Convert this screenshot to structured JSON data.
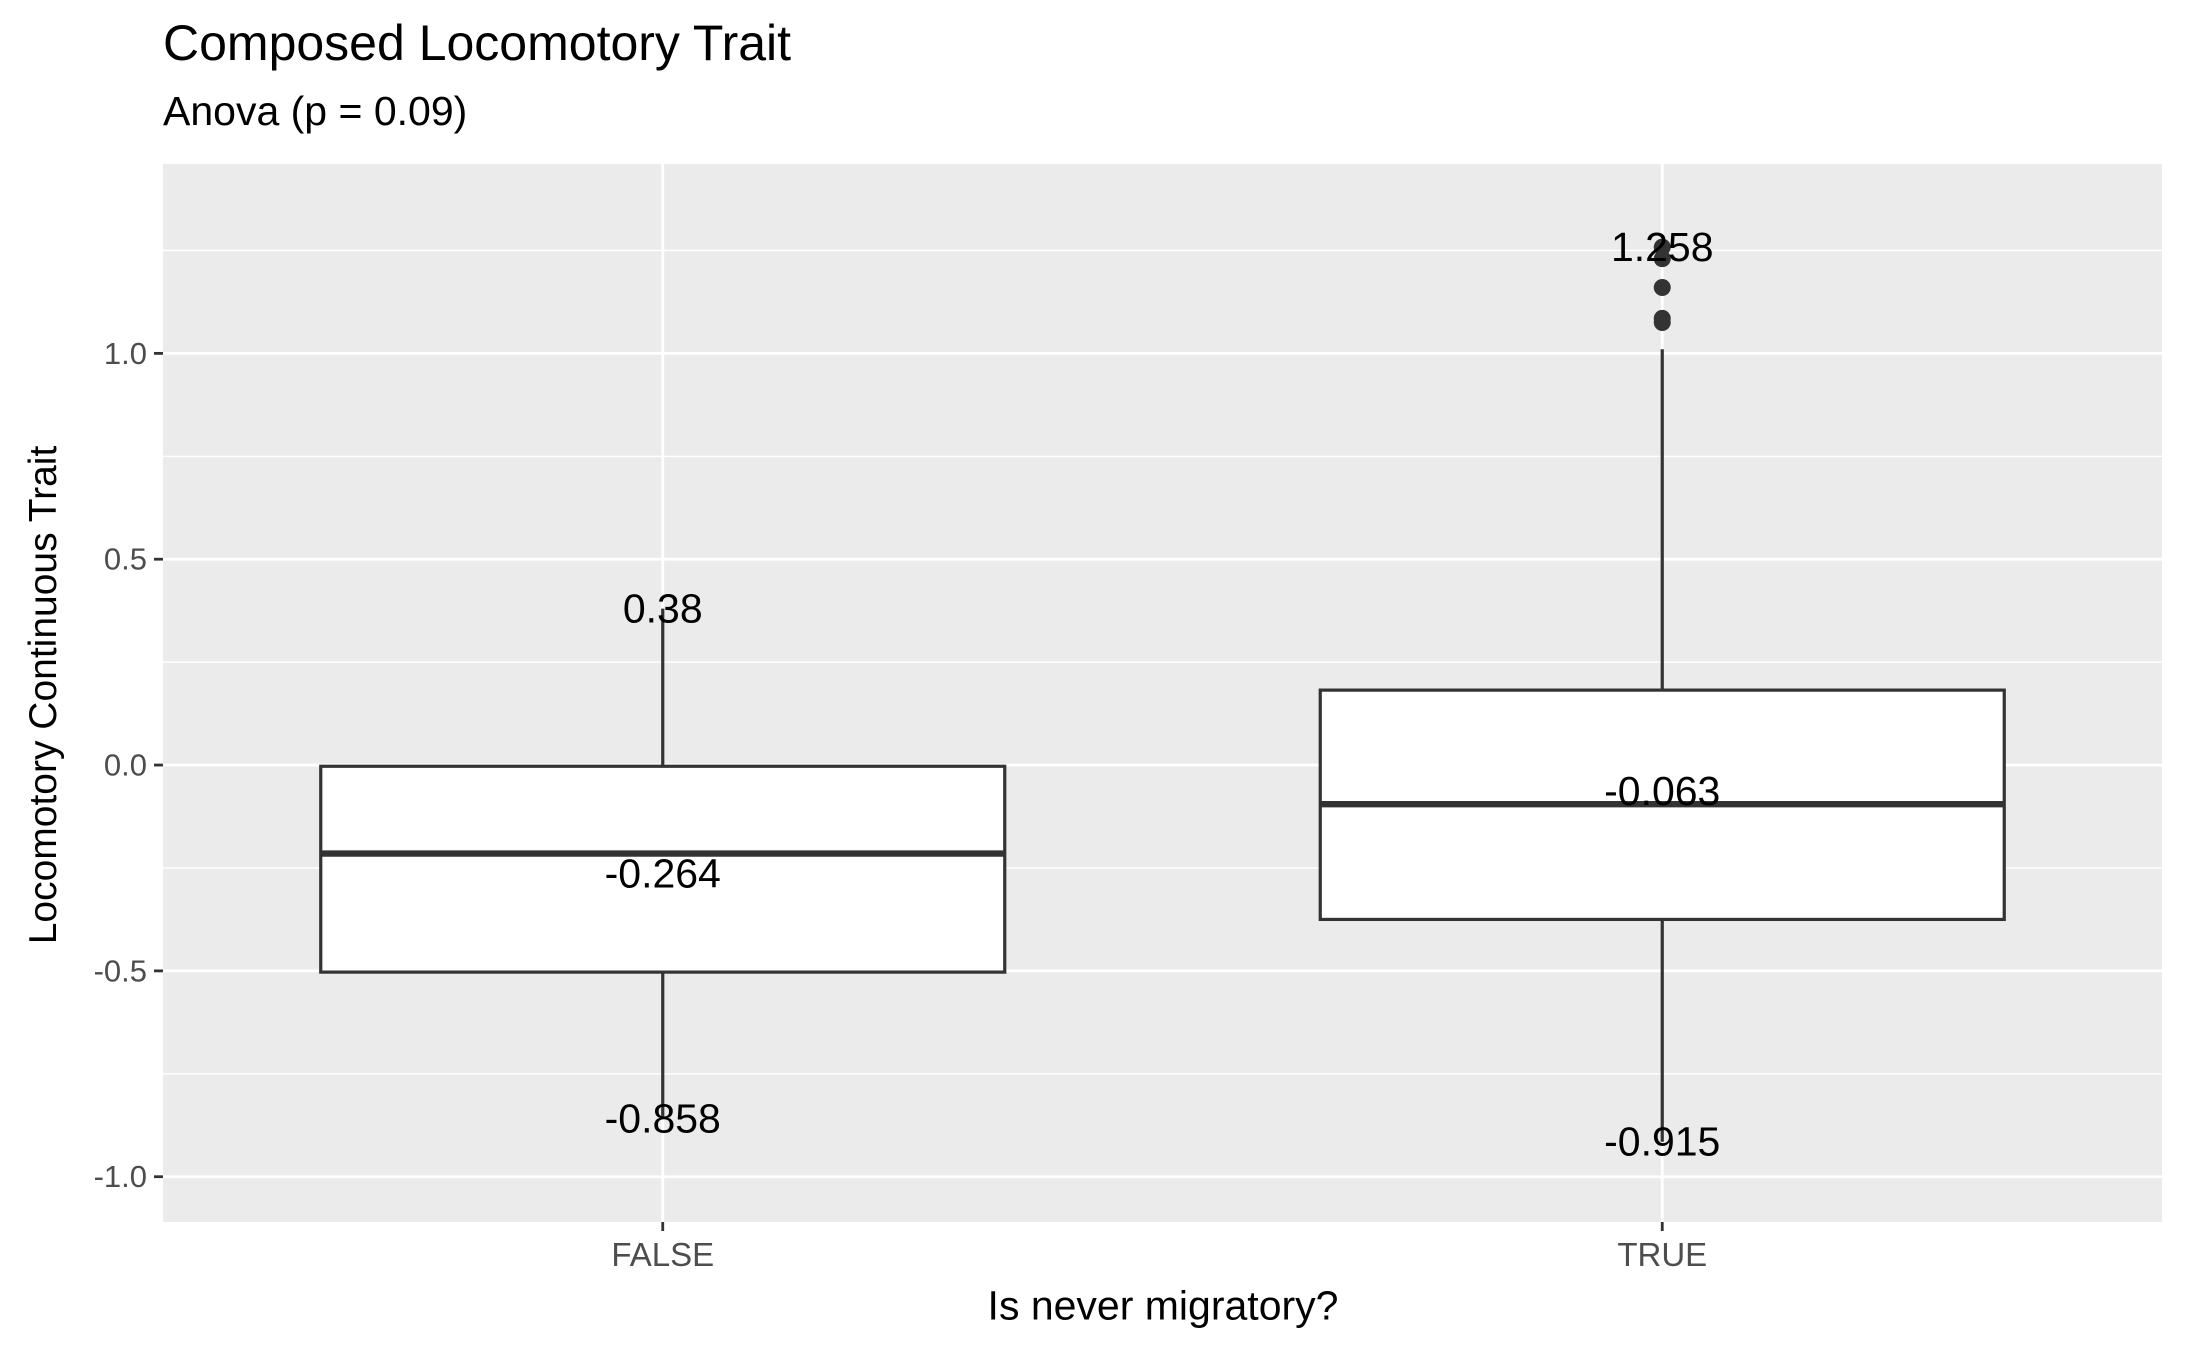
{
  "chart_data": {
    "type": "box",
    "title": "Composed Locomotory Trait",
    "subtitle": "Anova (p = 0.09)",
    "xlabel": "Is never migratory?",
    "ylabel": "Locomotory Continuous Trait",
    "categories": [
      "FALSE",
      "TRUE"
    ],
    "ylim": [
      -1.11,
      1.46
    ],
    "yticks": [
      -1.0,
      -0.5,
      0.0,
      0.5,
      1.0
    ],
    "ytick_labels": [
      "-1.0",
      "-0.5",
      "0.0",
      "0.5",
      "1.0"
    ],
    "grid": true,
    "boxes": [
      {
        "category": "FALSE",
        "min": -0.858,
        "q1": -0.503,
        "median": -0.215,
        "q3": -0.003,
        "max": 0.38,
        "outliers": []
      },
      {
        "category": "TRUE",
        "min": -0.915,
        "q1": -0.375,
        "median": -0.095,
        "q3": 0.182,
        "max": 1.01,
        "outliers": [
          1.258,
          1.23,
          1.16,
          1.085,
          1.075
        ]
      }
    ],
    "annotations": [
      {
        "category": "FALSE",
        "y": 0.38,
        "text": "0.38"
      },
      {
        "category": "FALSE",
        "y": -0.264,
        "text": "-0.264"
      },
      {
        "category": "FALSE",
        "y": -0.858,
        "text": "-0.858"
      },
      {
        "category": "TRUE",
        "y": 1.258,
        "text": "1.258"
      },
      {
        "category": "TRUE",
        "y": -0.063,
        "text": "-0.063"
      },
      {
        "category": "TRUE",
        "y": -0.915,
        "text": "-0.915"
      }
    ],
    "colors": {
      "panel": "#EBEBEB",
      "grid": "#FFFFFF",
      "box_fill": "#FFFFFF",
      "box_stroke": "#333333",
      "tick_label": "#4D4D4D"
    }
  }
}
